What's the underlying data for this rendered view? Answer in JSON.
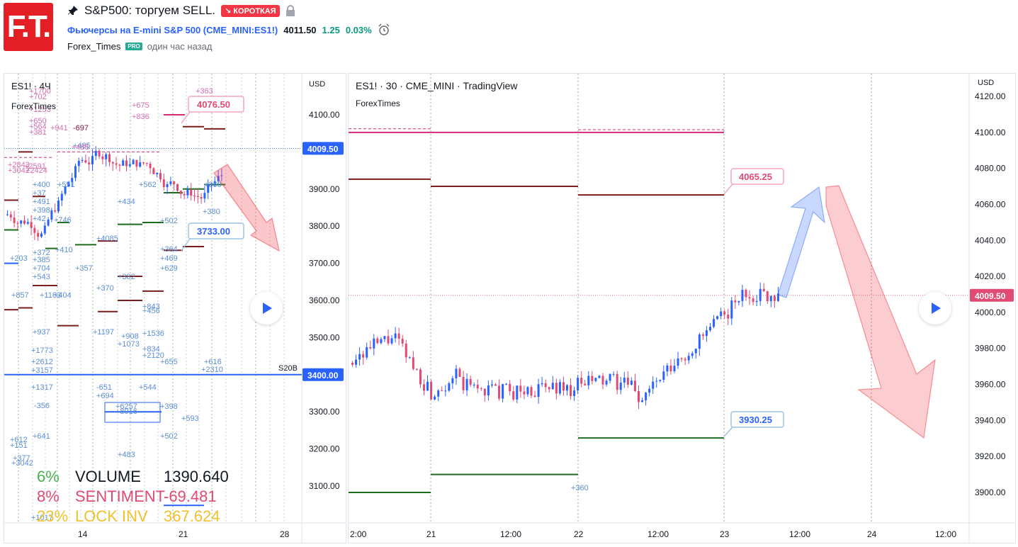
{
  "header": {
    "logo_text": "F.T.",
    "title": "S&P500: торгуем SELL.",
    "badge": "↘ КОРОТКАЯ",
    "symbol": "Фьючерсы на E-mini S&P 500 (CME_MINI:ES1!)",
    "price": "4011.50",
    "change": "1.25",
    "change_pct": "0.03%",
    "author": "Forex_Times",
    "pro": "PRO",
    "ago": "один час назад"
  },
  "left_chart": {
    "title": "ES1! · 4Ч",
    "author": "ForexTimes",
    "currency": "USD",
    "price_ticks": [
      "4100.00",
      "4000.00",
      "3900.00",
      "3800.00",
      "3700.00",
      "3600.00",
      "3500.00",
      "3400.00",
      "3300.00",
      "3200.00",
      "3100.00"
    ],
    "last_price": "4009.50",
    "line_price": "3400.00",
    "label_high": "4076.50",
    "label_low": "3733.00",
    "line_note": "S20B",
    "date_ticks": [
      "14",
      "21",
      "28"
    ],
    "indicators": [
      {
        "pct": "6%",
        "name": "VOLUME",
        "value": "1390.640",
        "color": "#4caf50"
      },
      {
        "pct": "8%",
        "name": "SENTIMENT",
        "value": "-69.481",
        "color": "#e04a73"
      },
      {
        "pct": "23%",
        "name": "LOCK INV",
        "value": "367.624",
        "color": "#f2c12e"
      }
    ],
    "numbers_blue": [
      "+400",
      "+37",
      "+491",
      "+398",
      "+42",
      "+746",
      "+410",
      "+372",
      "+385",
      "+357",
      "+704",
      "+543",
      "+203",
      "+4085",
      "+434",
      "+382",
      "+370",
      "+857",
      "+1163",
      "+404",
      "+937",
      "+1197",
      "+1773",
      "+2612",
      "+3157",
      "+1317",
      "-651",
      "+694",
      "-356",
      "+641",
      "+612",
      "+151",
      "+377",
      "+3042",
      "+1017",
      "+551",
      "+562",
      "+502",
      "+364",
      "+469",
      "+629",
      "+380",
      "+360",
      "+843",
      "+456",
      "+1536",
      "+908",
      "+1073",
      "+834",
      "+2120",
      "+655",
      "+616",
      "+2310",
      "+544",
      "+6257",
      "+398",
      "+8016",
      "+593",
      "+502",
      "+483",
      "+485",
      "+405"
    ],
    "numbers_pink": [
      "+1700",
      "+702",
      "+1253",
      "+650",
      "+564",
      "+381",
      "+941",
      "-697",
      "+675",
      "+836",
      "+363",
      "+2843",
      "+3042",
      "+2591",
      "+2424",
      "+485"
    ]
  },
  "right_chart": {
    "title": "ES1! · 30 · CME_MINI · TradingView",
    "author": "ForexTimes",
    "currency": "USD",
    "price_ticks": [
      "4120.00",
      "4100.00",
      "4080.00",
      "4060.00",
      "4040.00",
      "4020.00",
      "4000.00",
      "3980.00",
      "3960.00",
      "3940.00",
      "3920.00",
      "3900.00"
    ],
    "last_price": "4009.50",
    "label_high": "4065.25",
    "label_low": "3930.25",
    "note": "+360",
    "time_ticks": [
      "2:00",
      "21",
      "12:00",
      "22",
      "12:00",
      "23",
      "12:00",
      "24",
      "12:00"
    ]
  },
  "colors": {
    "up": "#2962ff",
    "down": "#e04a73",
    "accent_red": "#f23645",
    "magenta_level": "#d42a7a",
    "maroon_level": "#7a1d1d",
    "green_level": "#1e6b1e"
  }
}
